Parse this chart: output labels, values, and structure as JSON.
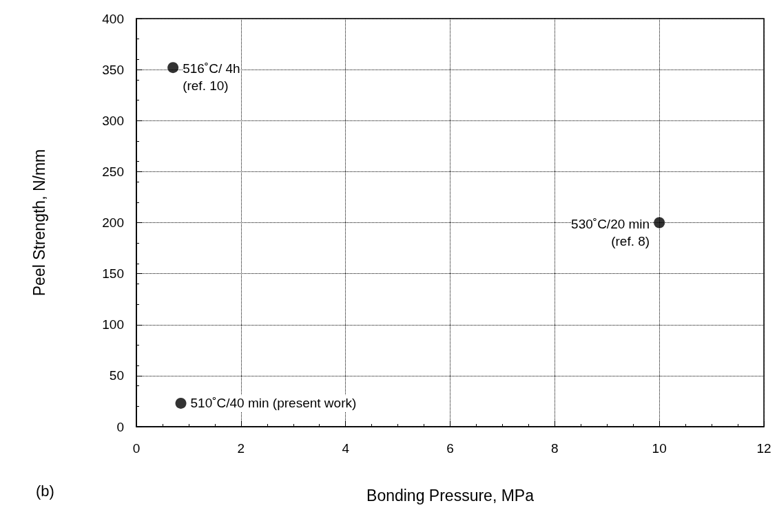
{
  "chart_data": {
    "type": "scatter",
    "xlabel": "Bonding Pressure, MPa",
    "ylabel": "Peel Strength, N/mm",
    "x": [
      0.7,
      10,
      0.85
    ],
    "series": [
      {
        "color": "#000000",
        "values": [
          352,
          200,
          23
        ]
      }
    ],
    "marker": "circle",
    "xlim": [
      0,
      12
    ],
    "xticks": [
      0,
      2,
      4,
      6,
      8,
      10,
      12
    ],
    "ylim": [
      0,
      400
    ],
    "yticks": [
      0,
      50,
      100,
      150,
      200,
      250,
      300,
      350,
      400
    ],
    "grid": true,
    "legend": false,
    "annotations": [
      {
        "text": "516˚C/ 4h\n(ref. 10)",
        "x": 0.7,
        "y": 352
      },
      {
        "text": "530˚C/20 min\n(ref. 8)",
        "x": 10,
        "y": 200
      },
      {
        "text": "510˚C/40 min (present work)",
        "x": 0.85,
        "y": 23
      },
      "(b)"
    ]
  }
}
